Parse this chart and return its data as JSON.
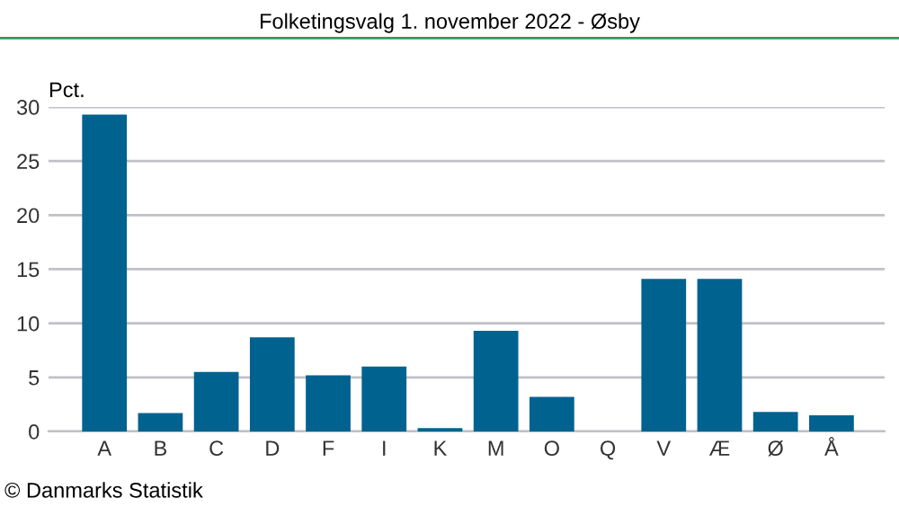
{
  "chart_data": {
    "type": "bar",
    "title": "Folketingsvalg 1. november 2022 - Øsby",
    "ylabel": "Pct.",
    "categories": [
      "A",
      "B",
      "C",
      "D",
      "F",
      "I",
      "K",
      "M",
      "O",
      "Q",
      "V",
      "Æ",
      "Ø",
      "Å"
    ],
    "values": [
      29.3,
      1.7,
      5.5,
      8.7,
      5.2,
      6.0,
      0.3,
      9.3,
      3.2,
      0,
      14.1,
      14.1,
      1.8,
      1.5
    ],
    "color": "#00628f",
    "ylim": [
      0,
      30
    ],
    "yticks": [
      0,
      5,
      10,
      15,
      20,
      25,
      30
    ],
    "grid": "y",
    "legend": false,
    "annotations": [
      "© Danmarks Statistik"
    ]
  }
}
